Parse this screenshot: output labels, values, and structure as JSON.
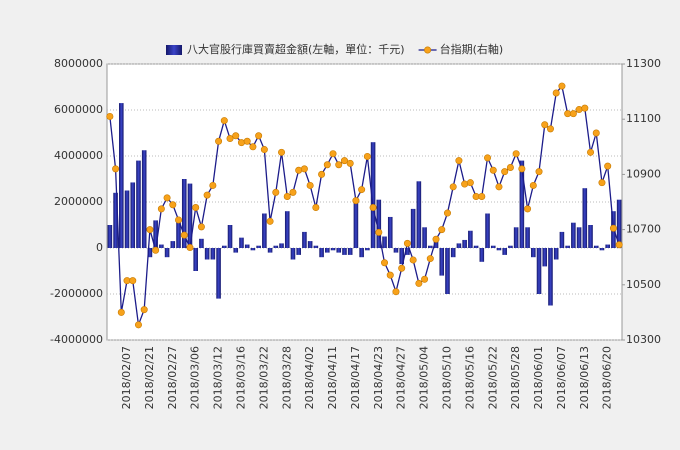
{
  "chart_data": {
    "type": "bar",
    "categories": [
      null,
      null,
      null,
      "2018/02/07",
      null,
      null,
      null,
      "2018/02/21",
      null,
      null,
      null,
      "2018/02/27",
      null,
      null,
      null,
      "2018/03/06",
      null,
      null,
      null,
      "2018/03/12",
      null,
      null,
      null,
      "2018/03/16",
      null,
      null,
      null,
      "2018/03/22",
      null,
      null,
      null,
      "2018/03/28",
      null,
      null,
      null,
      "2018/04/02",
      null,
      null,
      null,
      "2018/04/11",
      null,
      null,
      null,
      "2018/04/17",
      null,
      null,
      null,
      "2018/04/23",
      null,
      null,
      null,
      "2018/04/27",
      null,
      null,
      null,
      "2018/05/04",
      null,
      null,
      null,
      "2018/05/10",
      null,
      null,
      null,
      "2018/05/16",
      null,
      null,
      null,
      "2018/05/22",
      null,
      null,
      null,
      "2018/05/28",
      null,
      null,
      null,
      "2018/06/01",
      null,
      null,
      null,
      "2018/06/07",
      null,
      null,
      null,
      "2018/06/13",
      null,
      null,
      null,
      "2018/06/20",
      null,
      null
    ],
    "series": [
      {
        "name": "八大官股行庫買賣超金額(左軸，單位：千元)",
        "type": "bar",
        "color": "#2a2f9c",
        "values": [
          1000000,
          2400000,
          6300000,
          2500000,
          2850000,
          3800000,
          4250000,
          -400000,
          1200000,
          150000,
          -400000,
          300000,
          1200000,
          3000000,
          2800000,
          -1000000,
          400000,
          -500000,
          -500000,
          -2200000,
          100000,
          1000000,
          -200000,
          450000,
          150000,
          -100000,
          100000,
          1500000,
          -200000,
          100000,
          200000,
          1600000,
          -500000,
          -300000,
          700000,
          300000,
          100000,
          -400000,
          -200000,
          -100000,
          -200000,
          -300000,
          -300000,
          2000000,
          -400000,
          -100000,
          4600000,
          2100000,
          500000,
          1350000,
          -200000,
          -700000,
          -300000,
          1700000,
          2900000,
          900000,
          100000,
          350000,
          -1200000,
          -2000000,
          -400000,
          200000,
          350000,
          750000,
          100000,
          -600000,
          1500000,
          100000,
          -100000,
          -300000,
          100000,
          900000,
          3800000,
          900000,
          -400000,
          -2000000,
          -800000,
          -2500000,
          -500000,
          700000,
          100000,
          1100000,
          900000,
          2600000,
          1000000,
          100000,
          -100000,
          150000,
          1600000,
          2100000
        ]
      },
      {
        "name": "台指期(右軸)",
        "type": "line",
        "axis": "y2",
        "color": "#1c1c8a",
        "marker_color": "#f7a21b",
        "values": [
          11110,
          10920,
          10400,
          10515,
          10515,
          10355,
          10410,
          10700,
          10625,
          10775,
          10815,
          10790,
          10735,
          10680,
          10635,
          10780,
          10710,
          10825,
          10860,
          11020,
          11095,
          11030,
          11040,
          11015,
          11020,
          11000,
          11040,
          10990,
          10730,
          10835,
          10980,
          10820,
          10835,
          10915,
          10920,
          10860,
          10780,
          10900,
          10935,
          10975,
          10935,
          10950,
          10940,
          10805,
          10845,
          10965,
          10780,
          10690,
          10580,
          10535,
          10475,
          10560,
          10650,
          10590,
          10505,
          10520,
          10595,
          10665,
          10700,
          10760,
          10855,
          10950,
          10865,
          10870,
          10820,
          10820,
          10960,
          10915,
          10855,
          10910,
          10925,
          10975,
          10920,
          10775,
          10860,
          10910,
          11080,
          11065,
          11195,
          11220,
          11120,
          11120,
          11135,
          11140,
          10980,
          11050,
          10870,
          10930,
          10705,
          10645
        ]
      }
    ],
    "ylim": [
      -4000000,
      8000000
    ],
    "yticks": [
      -4000000,
      -2000000,
      0,
      2000000,
      4000000,
      6000000,
      8000000
    ],
    "y2lim": [
      10300,
      11300
    ],
    "y2ticks": [
      10300,
      10500,
      10700,
      10900,
      11100,
      11300
    ],
    "grid": true,
    "legend": "top"
  }
}
